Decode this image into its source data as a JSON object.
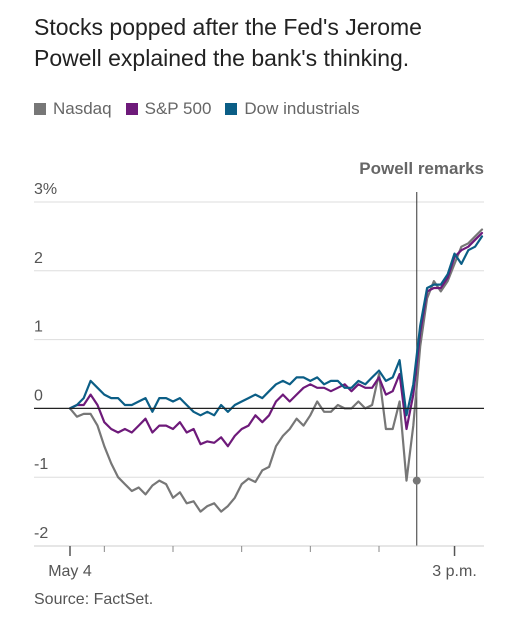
{
  "title": "Stocks popped after the Fed's Jerome Powell explained the bank's thinking.",
  "source": "Source: FactSet.",
  "colors": {
    "nasdaq": "#777777",
    "sp500": "#6e1a7a",
    "dow": "#0b5e86",
    "grid": "#dddddd",
    "zero": "#222222"
  },
  "chart_data": {
    "type": "line",
    "title": "Stocks popped after the Fed's Jerome Powell explained the bank's thinking.",
    "ylim": [
      -2,
      3
    ],
    "y_ticks": [
      "3%",
      "2",
      "1",
      "0",
      "-1",
      "-2"
    ],
    "y_tick_values": [
      3,
      2,
      1,
      0,
      -1,
      -2
    ],
    "x_range": [
      0,
      60
    ],
    "x_labels": [
      {
        "x": 0,
        "label": "May 4"
      },
      {
        "x": 56,
        "label": "3 p.m."
      }
    ],
    "x_minor_ticks": [
      0,
      5,
      15,
      25,
      35,
      45,
      56
    ],
    "annotation": {
      "x": 50.5,
      "label": "Powell remarks",
      "marker_value": -1.05
    },
    "grid": true,
    "legend_position": "top",
    "series": [
      {
        "name": "Nasdaq",
        "color": "#777777",
        "values": [
          0,
          -0.12,
          -0.08,
          -0.08,
          -0.25,
          -0.55,
          -0.8,
          -1,
          -1.1,
          -1.2,
          -1.15,
          -1.25,
          -1.12,
          -1.05,
          -1.1,
          -1.3,
          -1.22,
          -1.38,
          -1.35,
          -1.5,
          -1.42,
          -1.38,
          -1.5,
          -1.42,
          -1.3,
          -1.1,
          -1.02,
          -1.07,
          -0.9,
          -0.85,
          -0.55,
          -0.4,
          -0.3,
          -0.15,
          -0.25,
          -0.1,
          0.1,
          -0.05,
          -0.05,
          0.05,
          0,
          0,
          0.1,
          0,
          0.05,
          0.5,
          -0.3,
          -0.3,
          0.1,
          -1.05,
          -0.25,
          0.9,
          1.6,
          1.85,
          1.7,
          1.85,
          2.1,
          2.35,
          2.4,
          2.5,
          2.6
        ]
      },
      {
        "name": "S&P 500",
        "color": "#6e1a7a",
        "values": [
          0,
          0.05,
          0.05,
          0.2,
          0.05,
          -0.2,
          -0.3,
          -0.35,
          -0.3,
          -0.35,
          -0.25,
          -0.15,
          -0.35,
          -0.25,
          -0.25,
          -0.3,
          -0.2,
          -0.35,
          -0.3,
          -0.52,
          -0.48,
          -0.5,
          -0.42,
          -0.55,
          -0.4,
          -0.3,
          -0.25,
          -0.1,
          -0.2,
          -0.1,
          0.1,
          0.2,
          0.1,
          0.2,
          0.3,
          0.35,
          0.3,
          0.3,
          0.25,
          0.3,
          0.35,
          0.25,
          0.35,
          0.3,
          0.3,
          0.45,
          0.2,
          0.25,
          0.5,
          -0.3,
          0.2,
          1.1,
          1.7,
          1.75,
          1.75,
          1.9,
          2.2,
          2.3,
          2.35,
          2.45,
          2.55
        ]
      },
      {
        "name": "Dow industrials",
        "color": "#0b5e86",
        "values": [
          0,
          0.05,
          0.15,
          0.4,
          0.3,
          0.2,
          0.15,
          0.15,
          0.05,
          0.05,
          0.1,
          0.15,
          -0.05,
          0.15,
          0.15,
          0.1,
          0.15,
          0.05,
          -0.05,
          -0.1,
          -0.05,
          -0.1,
          0.05,
          -0.05,
          0.05,
          0.1,
          0.15,
          0.2,
          0.15,
          0.25,
          0.35,
          0.4,
          0.35,
          0.45,
          0.45,
          0.4,
          0.45,
          0.35,
          0.4,
          0.4,
          0.3,
          0.3,
          0.4,
          0.35,
          0.45,
          0.55,
          0.4,
          0.45,
          0.7,
          -0.1,
          0.35,
          1.2,
          1.75,
          1.8,
          1.8,
          1.95,
          2.25,
          2.1,
          2.3,
          2.35,
          2.5
        ]
      }
    ]
  }
}
